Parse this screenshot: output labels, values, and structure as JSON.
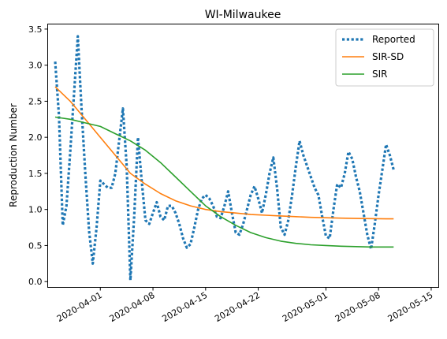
{
  "chart_data": {
    "type": "line",
    "title": "WI-Milwaukee",
    "xlabel": "",
    "ylabel": "Reproduction Number",
    "xlim": [
      "2020-03-25",
      "2020-05-16"
    ],
    "ylim": [
      -0.08,
      3.57
    ],
    "x_ticks": [
      "2020-04-01",
      "2020-04-08",
      "2020-04-15",
      "2020-04-22",
      "2020-05-01",
      "2020-05-08",
      "2020-05-15"
    ],
    "y_ticks": [
      "0.0",
      "0.5",
      "1.0",
      "1.5",
      "2.0",
      "2.5",
      "3.0",
      "3.5"
    ],
    "legend_position": "top-right",
    "grid": false,
    "series": [
      {
        "name": "Reported",
        "color": "#1f77b4",
        "style": "dotted",
        "points": [
          [
            "2020-03-26",
            3.05
          ],
          [
            "2020-03-26T12:00",
            2.3
          ],
          [
            "2020-03-27",
            0.78
          ],
          [
            "2020-03-27T12:00",
            1.05
          ],
          [
            "2020-03-28",
            1.8
          ],
          [
            "2020-03-28T12:00",
            2.6
          ],
          [
            "2020-03-29",
            3.4
          ],
          [
            "2020-03-29T12:00",
            2.4
          ],
          [
            "2020-03-30",
            1.5
          ],
          [
            "2020-03-30T12:00",
            0.7
          ],
          [
            "2020-03-31",
            0.25
          ],
          [
            "2020-03-31T12:00",
            0.75
          ],
          [
            "2020-04-01",
            1.4
          ],
          [
            "2020-04-01T12:00",
            1.35
          ],
          [
            "2020-04-02",
            1.3
          ],
          [
            "2020-04-02T12:00",
            1.3
          ],
          [
            "2020-04-03",
            1.5
          ],
          [
            "2020-04-03T12:00",
            1.95
          ],
          [
            "2020-04-04",
            2.4
          ],
          [
            "2020-04-04T12:00",
            1.6
          ],
          [
            "2020-04-05",
            0.02
          ],
          [
            "2020-04-05T12:00",
            0.9
          ],
          [
            "2020-04-06",
            2.0
          ],
          [
            "2020-04-06T12:00",
            1.4
          ],
          [
            "2020-04-07",
            0.85
          ],
          [
            "2020-04-07T12:00",
            0.8
          ],
          [
            "2020-04-08",
            0.95
          ],
          [
            "2020-04-08T12:00",
            1.1
          ],
          [
            "2020-04-09",
            0.9
          ],
          [
            "2020-04-09T12:00",
            0.85
          ],
          [
            "2020-04-10",
            1.05
          ],
          [
            "2020-04-10T12:00",
            1.05
          ],
          [
            "2020-04-11",
            0.95
          ],
          [
            "2020-04-11T12:00",
            0.8
          ],
          [
            "2020-04-12",
            0.6
          ],
          [
            "2020-04-12T12:00",
            0.47
          ],
          [
            "2020-04-13",
            0.52
          ],
          [
            "2020-04-13T12:00",
            0.75
          ],
          [
            "2020-04-14",
            1.0
          ],
          [
            "2020-04-14T12:00",
            1.15
          ],
          [
            "2020-04-15",
            1.2
          ],
          [
            "2020-04-15T12:00",
            1.15
          ],
          [
            "2020-04-16",
            1.05
          ],
          [
            "2020-04-16T12:00",
            0.9
          ],
          [
            "2020-04-17",
            0.88
          ],
          [
            "2020-04-17T12:00",
            1.05
          ],
          [
            "2020-04-18",
            1.25
          ],
          [
            "2020-04-18T12:00",
            0.95
          ],
          [
            "2020-04-19",
            0.68
          ],
          [
            "2020-04-19T12:00",
            0.65
          ],
          [
            "2020-04-20",
            0.8
          ],
          [
            "2020-04-20T12:00",
            1.0
          ],
          [
            "2020-04-21",
            1.2
          ],
          [
            "2020-04-21T12:00",
            1.32
          ],
          [
            "2020-04-22",
            1.15
          ],
          [
            "2020-04-22T12:00",
            0.95
          ],
          [
            "2020-04-23",
            1.2
          ],
          [
            "2020-04-23T12:00",
            1.5
          ],
          [
            "2020-04-24",
            1.72
          ],
          [
            "2020-04-24T12:00",
            1.3
          ],
          [
            "2020-04-25",
            0.75
          ],
          [
            "2020-04-25T12:00",
            0.65
          ],
          [
            "2020-04-26",
            0.85
          ],
          [
            "2020-04-26T12:00",
            1.2
          ],
          [
            "2020-04-27",
            1.6
          ],
          [
            "2020-04-27T12:00",
            1.95
          ],
          [
            "2020-04-28",
            1.75
          ],
          [
            "2020-04-28T12:00",
            1.6
          ],
          [
            "2020-04-29",
            1.45
          ],
          [
            "2020-04-29T12:00",
            1.3
          ],
          [
            "2020-04-30",
            1.2
          ],
          [
            "2020-04-30T12:00",
            0.9
          ],
          [
            "2020-05-01",
            0.63
          ],
          [
            "2020-05-01T12:00",
            0.6
          ],
          [
            "2020-05-02",
            1.0
          ],
          [
            "2020-05-02T12:00",
            1.35
          ],
          [
            "2020-05-03",
            1.3
          ],
          [
            "2020-05-03T12:00",
            1.5
          ],
          [
            "2020-05-04",
            1.8
          ],
          [
            "2020-05-04T12:00",
            1.7
          ],
          [
            "2020-05-05",
            1.45
          ],
          [
            "2020-05-05T12:00",
            1.25
          ],
          [
            "2020-05-06",
            0.95
          ],
          [
            "2020-05-06T12:00",
            0.65
          ],
          [
            "2020-05-07",
            0.45
          ],
          [
            "2020-05-07T12:00",
            0.8
          ],
          [
            "2020-05-08",
            1.2
          ],
          [
            "2020-05-08T12:00",
            1.55
          ],
          [
            "2020-05-09",
            1.9
          ],
          [
            "2020-05-09T12:00",
            1.75
          ],
          [
            "2020-05-10",
            1.55
          ]
        ]
      },
      {
        "name": "SIR-SD",
        "color": "#ff7f0e",
        "style": "solid",
        "points": [
          [
            "2020-03-26",
            2.7
          ],
          [
            "2020-03-28",
            2.5
          ],
          [
            "2020-03-30",
            2.25
          ],
          [
            "2020-04-01",
            2.0
          ],
          [
            "2020-04-03",
            1.75
          ],
          [
            "2020-04-05",
            1.5
          ],
          [
            "2020-04-07",
            1.35
          ],
          [
            "2020-04-09",
            1.22
          ],
          [
            "2020-04-11",
            1.12
          ],
          [
            "2020-04-13",
            1.05
          ],
          [
            "2020-04-15",
            1.0
          ],
          [
            "2020-04-17",
            0.97
          ],
          [
            "2020-04-19",
            0.95
          ],
          [
            "2020-04-21",
            0.93
          ],
          [
            "2020-04-23",
            0.92
          ],
          [
            "2020-04-25",
            0.91
          ],
          [
            "2020-04-27",
            0.9
          ],
          [
            "2020-04-29",
            0.89
          ],
          [
            "2020-05-01",
            0.885
          ],
          [
            "2020-05-03",
            0.88
          ],
          [
            "2020-05-05",
            0.875
          ],
          [
            "2020-05-07",
            0.873
          ],
          [
            "2020-05-09",
            0.87
          ],
          [
            "2020-05-10",
            0.87
          ]
        ]
      },
      {
        "name": "SIR",
        "color": "#2ca02c",
        "style": "solid",
        "points": [
          [
            "2020-03-26",
            2.28
          ],
          [
            "2020-03-28",
            2.25
          ],
          [
            "2020-03-30",
            2.2
          ],
          [
            "2020-04-01",
            2.15
          ],
          [
            "2020-04-03",
            2.05
          ],
          [
            "2020-04-05",
            1.95
          ],
          [
            "2020-04-07",
            1.82
          ],
          [
            "2020-04-09",
            1.65
          ],
          [
            "2020-04-11",
            1.45
          ],
          [
            "2020-04-13",
            1.25
          ],
          [
            "2020-04-15",
            1.05
          ],
          [
            "2020-04-17",
            0.9
          ],
          [
            "2020-04-19",
            0.78
          ],
          [
            "2020-04-21",
            0.68
          ],
          [
            "2020-04-23",
            0.61
          ],
          [
            "2020-04-25",
            0.56
          ],
          [
            "2020-04-27",
            0.53
          ],
          [
            "2020-04-29",
            0.51
          ],
          [
            "2020-05-01",
            0.5
          ],
          [
            "2020-05-03",
            0.49
          ],
          [
            "2020-05-05",
            0.485
          ],
          [
            "2020-05-07",
            0.48
          ],
          [
            "2020-05-09",
            0.48
          ],
          [
            "2020-05-10",
            0.48
          ]
        ]
      }
    ]
  }
}
